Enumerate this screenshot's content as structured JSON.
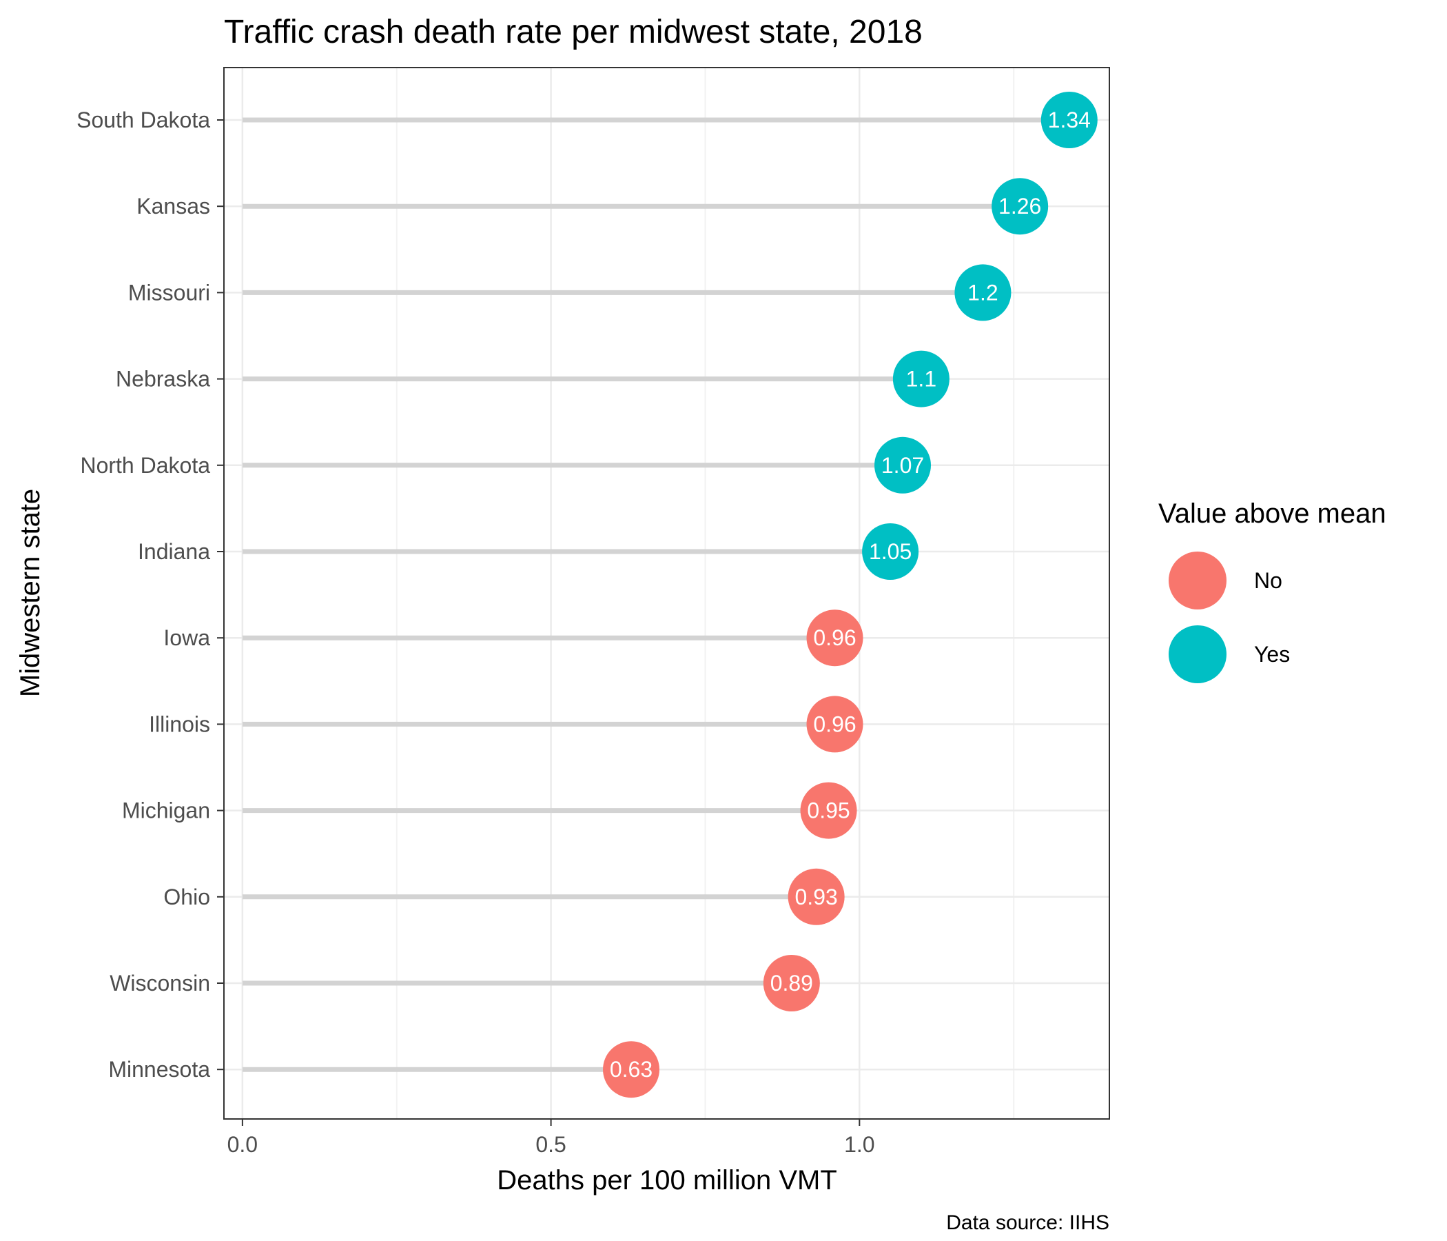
{
  "chart_data": {
    "type": "lollipop",
    "title": "Traffic crash death rate per midwest state, 2018",
    "xlabel": "Deaths per 100 million VMT",
    "ylabel": "Midwestern state",
    "caption": "Data source: IIHS",
    "xlim": [
      -0.03,
      1.405
    ],
    "x_ticks": [
      0.0,
      0.5,
      1.0
    ],
    "x_tick_labels": [
      "0.0",
      "0.5",
      "1.0"
    ],
    "grid": true,
    "legend": {
      "title": "Value above mean",
      "placement": "right",
      "entries": [
        {
          "label": "No",
          "color": "#F8766D"
        },
        {
          "label": "Yes",
          "color": "#00BFC4"
        }
      ]
    },
    "colors": {
      "No": "#F8766D",
      "Yes": "#00BFC4",
      "stem": "#d3d3d3"
    },
    "points": [
      {
        "state": "South Dakota",
        "value": 1.34,
        "label": "1.34",
        "above_mean": "Yes"
      },
      {
        "state": "Kansas",
        "value": 1.26,
        "label": "1.26",
        "above_mean": "Yes"
      },
      {
        "state": "Missouri",
        "value": 1.2,
        "label": "1.2",
        "above_mean": "Yes"
      },
      {
        "state": "Nebraska",
        "value": 1.1,
        "label": "1.1",
        "above_mean": "Yes"
      },
      {
        "state": "North Dakota",
        "value": 1.07,
        "label": "1.07",
        "above_mean": "Yes"
      },
      {
        "state": "Indiana",
        "value": 1.05,
        "label": "1.05",
        "above_mean": "Yes"
      },
      {
        "state": "Iowa",
        "value": 0.96,
        "label": "0.96",
        "above_mean": "No"
      },
      {
        "state": "Illinois",
        "value": 0.96,
        "label": "0.96",
        "above_mean": "No"
      },
      {
        "state": "Michigan",
        "value": 0.95,
        "label": "0.95",
        "above_mean": "No"
      },
      {
        "state": "Ohio",
        "value": 0.93,
        "label": "0.93",
        "above_mean": "No"
      },
      {
        "state": "Wisconsin",
        "value": 0.89,
        "label": "0.89",
        "above_mean": "No"
      },
      {
        "state": "Minnesota",
        "value": 0.63,
        "label": "0.63",
        "above_mean": "No"
      }
    ]
  }
}
